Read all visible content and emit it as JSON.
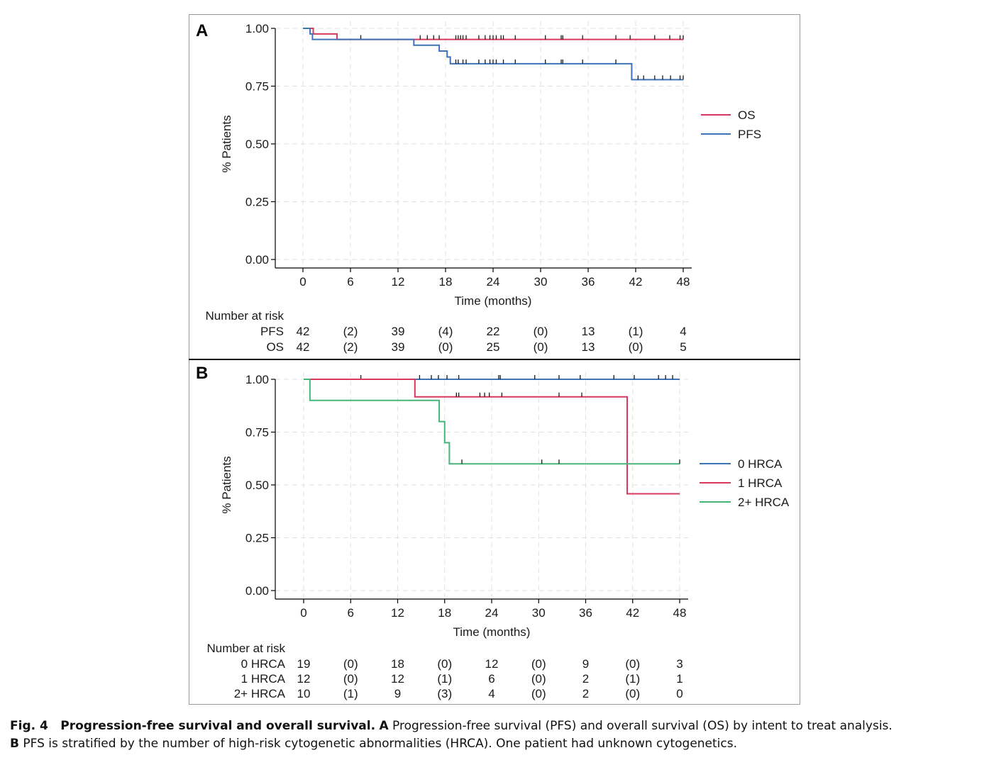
{
  "caption": {
    "fig_label": "Fig. 4",
    "title": "Progression-free survival and overall survival.",
    "a_letter": "A",
    "a_text": "Progression-free survival (PFS) and overall survival (OS) by intent to treat analysis.",
    "b_letter": "B",
    "b_text": "PFS is stratified by the number of high-risk cytogenetic abnormalities (HRCA). One patient had unknown cytogenetics."
  },
  "chart_data": [
    {
      "panel": "A",
      "type": "line",
      "step": true,
      "xlabel": "Time (months)",
      "ylabel": "% Patients",
      "xlim": [
        0,
        48
      ],
      "ylim": [
        0,
        1
      ],
      "x_ticks": [
        0,
        6,
        12,
        18,
        24,
        30,
        36,
        42,
        48
      ],
      "x_tick_labels": [
        "0",
        "6",
        "12",
        "18",
        "24",
        "30",
        "36",
        "42",
        "48"
      ],
      "y_ticks": [
        0,
        0.25,
        0.5,
        0.75,
        1.0
      ],
      "y_tick_labels": [
        "0.00",
        "0.25",
        "0.50",
        "0.75",
        "1.00"
      ],
      "grid": true,
      "legend_position": "right",
      "series": [
        {
          "name": "OS",
          "color": "#d8385e",
          "steps": [
            [
              0,
              1.0
            ],
            [
              1.3,
              0.976
            ],
            [
              4.3,
              0.952
            ],
            [
              48,
              0.952
            ]
          ],
          "censored_x": [
            7.3,
            14.8,
            15.7,
            16.5,
            17.2,
            19.3,
            19.6,
            19.9,
            20.2,
            20.6,
            22.2,
            23,
            23.6,
            24,
            24.4,
            25,
            25.3,
            26.8,
            30.6,
            32.6,
            32.8,
            35.3,
            39.5,
            41.3,
            44.4,
            46.3,
            47.6,
            48
          ]
        },
        {
          "name": "PFS",
          "color": "#3f73b8",
          "steps": [
            [
              0,
              1.0
            ],
            [
              0.9,
              0.976
            ],
            [
              1.2,
              0.952
            ],
            [
              14,
              0.927
            ],
            [
              17.2,
              0.902
            ],
            [
              18.2,
              0.876
            ],
            [
              18.6,
              0.847
            ],
            [
              41.5,
              0.778
            ],
            [
              48,
              0.778
            ]
          ],
          "censored_x": [
            19.3,
            19.6,
            20.2,
            20.6,
            22.2,
            23,
            23.6,
            24,
            24.4,
            25.3,
            26.8,
            30.6,
            32.6,
            32.8,
            35.3,
            39.5,
            42.3,
            43,
            44.4,
            45.4,
            46.4,
            47.6,
            48
          ]
        }
      ],
      "risk_table": {
        "title": "Number at risk",
        "times": [
          0,
          6,
          12,
          18,
          24,
          30,
          36,
          42,
          48
        ],
        "rows": [
          {
            "label": "PFS",
            "values": [
              "42",
              "(2)",
              "39",
              "(4)",
              "22",
              "(0)",
              "13",
              "(1)",
              "4"
            ]
          },
          {
            "label": "OS",
            "values": [
              "42",
              "(2)",
              "39",
              "(0)",
              "25",
              "(0)",
              "13",
              "(0)",
              "5"
            ]
          }
        ]
      }
    },
    {
      "panel": "B",
      "type": "line",
      "step": true,
      "xlabel": "Time (months)",
      "ylabel": "% Patients",
      "xlim": [
        0,
        48
      ],
      "ylim": [
        0,
        1
      ],
      "x_ticks": [
        0,
        6,
        12,
        18,
        24,
        30,
        36,
        42,
        48
      ],
      "x_tick_labels": [
        "0",
        "6",
        "12",
        "18",
        "24",
        "30",
        "36",
        "42",
        "48"
      ],
      "y_ticks": [
        0,
        0.25,
        0.5,
        0.75,
        1.0
      ],
      "y_tick_labels": [
        "0.00",
        "0.25",
        "0.50",
        "0.75",
        "1.00"
      ],
      "grid": true,
      "legend_position": "right",
      "series": [
        {
          "name": "0 HRCA",
          "color": "#3f73b8",
          "steps": [
            [
              0,
              1.0
            ],
            [
              48,
              1.0
            ]
          ],
          "censored_x": [
            7.3,
            14.8,
            16.3,
            17.2,
            18.3,
            19.8,
            24.9,
            25.1,
            29.5,
            32.6,
            35.3,
            39.6,
            42.2,
            45.3,
            46.2,
            47.1
          ]
        },
        {
          "name": "1 HRCA",
          "color": "#d8385e",
          "steps": [
            [
              0,
              1.0
            ],
            [
              14.2,
              0.917
            ],
            [
              41.3,
              0.458
            ],
            [
              48,
              0.458
            ]
          ],
          "censored_x": [
            19.5,
            19.8,
            22.5,
            23.1,
            23.7,
            25.3,
            32.6,
            35.5
          ]
        },
        {
          "name": "2+ HRCA",
          "color": "#47b57a",
          "steps": [
            [
              0,
              1.0
            ],
            [
              0.8,
              0.9
            ],
            [
              17.3,
              0.8
            ],
            [
              18,
              0.7
            ],
            [
              18.6,
              0.6
            ],
            [
              48,
              0.6
            ]
          ],
          "censored_x": [
            20.2,
            30.4,
            32.6,
            48
          ]
        }
      ],
      "risk_table": {
        "title": "Number at risk",
        "times": [
          0,
          6,
          12,
          18,
          24,
          30,
          36,
          42,
          48
        ],
        "rows": [
          {
            "label": "0 HRCA",
            "values": [
              "19",
              "(0)",
              "18",
              "(0)",
              "12",
              "(0)",
              "9",
              "(0)",
              "3"
            ]
          },
          {
            "label": "1 HRCA",
            "values": [
              "12",
              "(0)",
              "12",
              "(1)",
              "6",
              "(0)",
              "2",
              "(1)",
              "1"
            ]
          },
          {
            "label": "2+ HRCA",
            "values": [
              "10",
              "(1)",
              "9",
              "(3)",
              "4",
              "(0)",
              "2",
              "(0)",
              "0"
            ]
          }
        ]
      }
    }
  ]
}
